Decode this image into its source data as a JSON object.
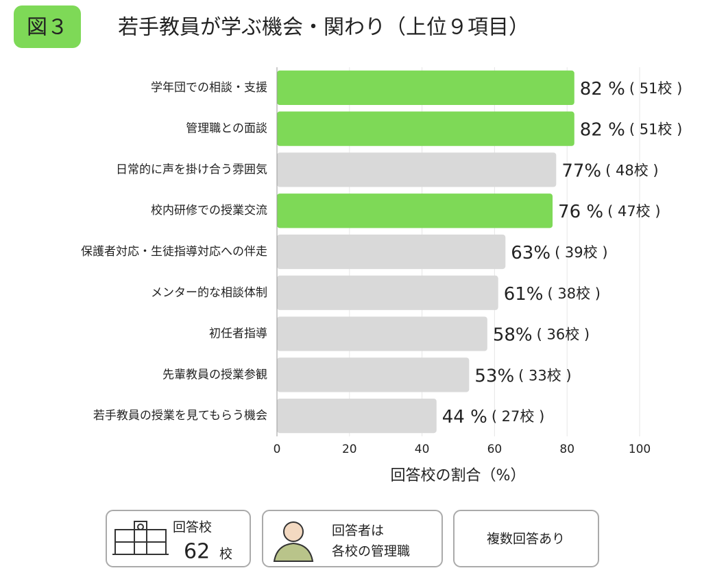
{
  "badge": "図３",
  "chart_data": {
    "type": "bar",
    "orientation": "horizontal",
    "title": "若手教員が学ぶ機会・関わり（上位９項目）",
    "x_label": "回答校の割合（%）",
    "categories": [
      "学年団での相談・支援",
      "管理職との面談",
      "日常的に声を掛け合う雰囲気",
      "校内研修での授業交流",
      "保護者対応・生徒指導対応への伴走",
      "メンター的な相談体制",
      "初任者指導",
      "先輩教員の授業参観",
      "若手教員の授業を見てもらう機会"
    ],
    "values": [
      82,
      82,
      77,
      76,
      63,
      61,
      58,
      53,
      44
    ],
    "value_labels": [
      "82 %",
      "82 %",
      "77%",
      "76 %",
      "63%",
      "61%",
      "58%",
      "53%",
      "44 %"
    ],
    "count_labels": [
      "( 51校 )",
      "( 51校 )",
      "( 48校 )",
      "( 47校 )",
      "( 39校 )",
      "( 38校 )",
      "( 36校 )",
      "( 33校 )",
      "( 27校 )"
    ],
    "colors": [
      "#7ed957",
      "#7ed957",
      "#d9d9d9",
      "#7ed957",
      "#d9d9d9",
      "#d9d9d9",
      "#d9d9d9",
      "#d9d9d9",
      "#d9d9d9"
    ],
    "xlim": [
      0,
      100
    ],
    "xticks": [
      0,
      20,
      40,
      60,
      80,
      100
    ],
    "grid": true
  },
  "footer": {
    "respondents_label": "回答校",
    "respondents_count": "62",
    "respondents_unit": "校",
    "respondent_line1": "回答者は",
    "respondent_line2": "各校の管理職",
    "note": "複数回答あり"
  }
}
